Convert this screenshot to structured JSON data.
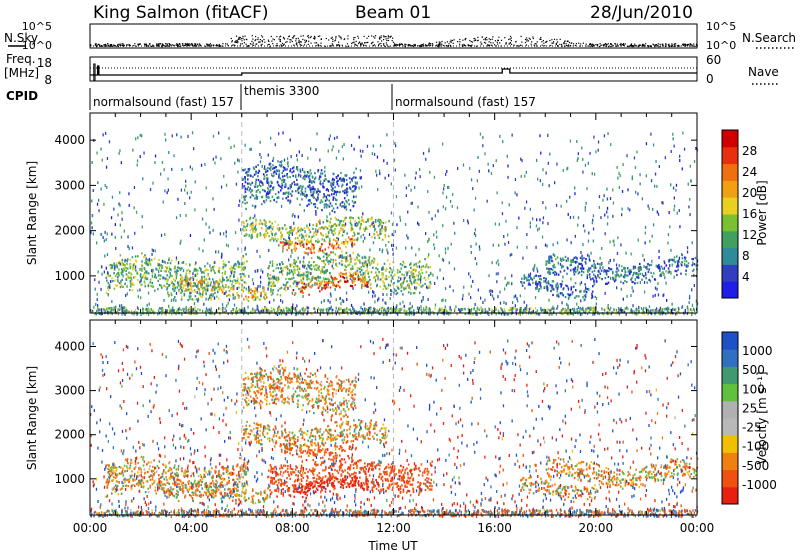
{
  "header": {
    "station": "King Salmon (fitACF)",
    "beam": "Beam 01",
    "date": "28/Jun/2010"
  },
  "top_panels": {
    "nsky_label": "N.Sky",
    "nsearch_label": "N.Search",
    "freq_label_1": "Freq.",
    "freq_label_2": "[MHz]",
    "nave_label": "Nave",
    "cpid_label": "CPID",
    "left_ticks_noise": [
      "10^5",
      "10^0"
    ],
    "right_ticks_noise": [
      "10^5",
      "10^0"
    ],
    "left_ticks_freq": [
      "18",
      "8"
    ],
    "right_ticks_nave": [
      "60",
      "0"
    ],
    "cpid_segments": [
      {
        "label": "normalsound (fast) 157",
        "start_hr": 0,
        "end_hr": 6
      },
      {
        "label": "themis 3300",
        "start_hr": 6,
        "end_hr": 12
      },
      {
        "label": "normalsound (fast) 157",
        "start_hr": 12,
        "end_hr": 24
      }
    ]
  },
  "axes": {
    "ylabel": "Slant Range [km]",
    "xlabel": "Time UT",
    "x_ticks": [
      "00:00",
      "04:00",
      "08:00",
      "12:00",
      "16:00",
      "20:00",
      "00:00"
    ],
    "y_ticks": [
      "1000",
      "2000",
      "3000",
      "4000"
    ]
  },
  "power_colorbar": {
    "label": "Power [dB]",
    "ticks": [
      "4",
      "8",
      "12",
      "16",
      "20",
      "24",
      "28"
    ],
    "colors": [
      "#1e1ee6",
      "#2f3fbf",
      "#2f8a9a",
      "#3fa060",
      "#7ac030",
      "#e8d020",
      "#f0a010",
      "#f07010",
      "#e83010",
      "#d00000"
    ]
  },
  "velocity_colorbar": {
    "label": "Velocity [m s⁻¹]",
    "ticks": [
      "1000",
      "500",
      "100",
      "25",
      "-25",
      "-100",
      "-500",
      "-1000"
    ],
    "colors": [
      "#1e50c8",
      "#2f70c0",
      "#3f9a70",
      "#60c040",
      "#b0b0b0",
      "#b8b8b8",
      "#f0c000",
      "#f08010",
      "#f05010",
      "#e82010"
    ]
  },
  "chart_data": {
    "type": "heatmap",
    "x_range_hr": [
      0,
      24
    ],
    "ylim_km": [
      180,
      4600
    ],
    "regions": [
      {
        "name": "",
        "t0": 0.6,
        "t1": 6.2,
        "r0": 550,
        "r1": 1450,
        "power": 12,
        "vel": -25
      },
      {
        "name": "",
        "t0": 3.5,
        "t1": 7.0,
        "r0": 550,
        "r1": 900,
        "power": 18,
        "vel": -25
      },
      {
        "name": "",
        "t0": 6.0,
        "t1": 11.8,
        "r0": 1750,
        "r1": 2300,
        "power": 14,
        "vel": -25
      },
      {
        "name": "",
        "t0": 7.5,
        "t1": 10.5,
        "r0": 1600,
        "r1": 1900,
        "power": 22,
        "vel": -100
      },
      {
        "name": "",
        "t0": 7.0,
        "t1": 13.5,
        "r0": 700,
        "r1": 1500,
        "power": 13,
        "vel": -200
      },
      {
        "name": "",
        "t0": 8.0,
        "t1": 11.0,
        "r0": 650,
        "r1": 1000,
        "power": 24,
        "vel": -500
      },
      {
        "name": "",
        "t0": 6.0,
        "t1": 10.5,
        "r0": 2500,
        "r1": 3500,
        "power": 6,
        "vel": -25
      },
      {
        "name": "",
        "t0": 18.0,
        "t1": 24.0,
        "r0": 900,
        "r1": 1400,
        "power": 7,
        "vel": -25
      },
      {
        "name": "",
        "t0": 17.0,
        "t1": 20.0,
        "r0": 600,
        "r1": 1000,
        "power": 6,
        "vel": -25
      }
    ]
  }
}
